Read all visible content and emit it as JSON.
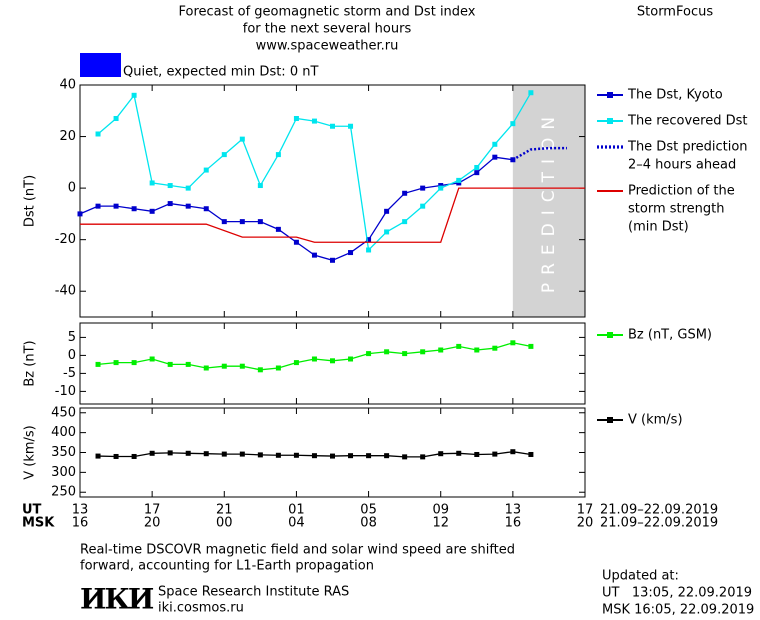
{
  "header": {
    "title_lines": [
      "Forecast of geomagnetic storm and Dst index",
      "for the next several hours",
      "www.spaceweather.ru"
    ],
    "brand": "StormFocus"
  },
  "status": {
    "label": "Quiet, expected min Dst: 0 nT",
    "color": "#0000ff"
  },
  "time_axis": {
    "xlim": [
      0,
      28
    ],
    "ut_label": "UT",
    "msk_label": "MSK",
    "date_range": "21.09–22.09.2019",
    "ut_ticks": [
      {
        "value": 0,
        "label": "13"
      },
      {
        "value": 4,
        "label": "17"
      },
      {
        "value": 8,
        "label": "21"
      },
      {
        "value": 12,
        "label": "01"
      },
      {
        "value": 16,
        "label": "05"
      },
      {
        "value": 20,
        "label": "09"
      },
      {
        "value": 24,
        "label": "13"
      },
      {
        "value": 28,
        "label": "17"
      }
    ],
    "msk_ticks": [
      {
        "value": 0,
        "label": "16"
      },
      {
        "value": 4,
        "label": "20"
      },
      {
        "value": 8,
        "label": "00"
      },
      {
        "value": 12,
        "label": "04"
      },
      {
        "value": 16,
        "label": "08"
      },
      {
        "value": 20,
        "label": "12"
      },
      {
        "value": 24,
        "label": "16"
      },
      {
        "value": 28,
        "label": "20"
      }
    ]
  },
  "chart_data": [
    {
      "type": "line",
      "y_label": "Dst (nT)",
      "ylim": [
        -50,
        40
      ],
      "yticks": [
        -40,
        -20,
        0,
        20,
        40
      ],
      "shaded_span": [
        24,
        28
      ],
      "shaded_label": "PREDICTION",
      "series": [
        {
          "name": "The Dst, Kyoto",
          "color": "#0000cc",
          "style": "solid",
          "marker": "square",
          "x": [
            0,
            1,
            2,
            3,
            4,
            5,
            6,
            7,
            8,
            9,
            10,
            11,
            12,
            13,
            14,
            15,
            16,
            17,
            18,
            19,
            20,
            21,
            22,
            23,
            24
          ],
          "values": [
            -10,
            -7,
            -7,
            -8,
            -9,
            -6,
            -7,
            -8,
            -13,
            -13,
            -13,
            -16,
            -21,
            -26,
            -28,
            -25,
            -20,
            -9,
            -2,
            0,
            1,
            2,
            6,
            12,
            11
          ]
        },
        {
          "name": "The recovered Dst",
          "color": "#00e5ee",
          "style": "solid",
          "marker": "square",
          "x": [
            1,
            2,
            3,
            4,
            5,
            6,
            7,
            8,
            9,
            10,
            11,
            12,
            13,
            14,
            15,
            16,
            17,
            18,
            19,
            20,
            21,
            22,
            23,
            24,
            25
          ],
          "values": [
            21,
            27,
            36,
            2,
            1,
            0,
            7,
            13,
            19,
            1,
            13,
            27,
            26,
            24,
            24,
            -24,
            -17,
            -13,
            -7,
            0,
            3,
            8,
            17,
            25,
            37
          ]
        },
        {
          "name": [
            "The Dst prediction",
            "2–4 hours ahead"
          ],
          "color": "#0000cc",
          "style": "dotted",
          "marker": "none",
          "x": [
            24,
            25,
            26,
            27
          ],
          "values": [
            11,
            15,
            15.5,
            15.5
          ]
        },
        {
          "name": [
            "Prediction of the",
            "storm strength",
            "(min Dst)"
          ],
          "color": "#dd0000",
          "style": "solid",
          "marker": "none",
          "x": [
            0,
            7,
            9,
            12,
            13,
            20,
            21,
            28
          ],
          "values": [
            -14,
            -14,
            -19,
            -19,
            -21,
            -21,
            0,
            0
          ]
        }
      ]
    },
    {
      "type": "line",
      "y_label": "Bz (nT)",
      "ylim": [
        -13.5,
        9
      ],
      "yticks": [
        -10,
        -5,
        0,
        5
      ],
      "series": [
        {
          "name": "Bz (nT, GSM)",
          "color": "#00ee00",
          "style": "solid",
          "marker": "square",
          "x": [
            1,
            2,
            3,
            4,
            5,
            6,
            7,
            8,
            9,
            10,
            11,
            12,
            13,
            14,
            15,
            16,
            17,
            18,
            19,
            20,
            21,
            22,
            23,
            24,
            25
          ],
          "values": [
            -2.5,
            -2,
            -2,
            -1,
            -2.5,
            -2.5,
            -3.5,
            -3,
            -3,
            -4,
            -3.5,
            -2,
            -1,
            -1.5,
            -1,
            0.5,
            1,
            0.5,
            1,
            1.5,
            2.5,
            1.5,
            2,
            3.5,
            2.5
          ]
        }
      ]
    },
    {
      "type": "line",
      "y_label": "V (km/s)",
      "ylim": [
        238,
        462
      ],
      "yticks": [
        250,
        300,
        350,
        400,
        450
      ],
      "series": [
        {
          "name": "V (km/s)",
          "color": "#000000",
          "style": "solid",
          "marker": "square",
          "x": [
            1,
            2,
            3,
            4,
            5,
            6,
            7,
            8,
            9,
            10,
            11,
            12,
            13,
            14,
            15,
            16,
            17,
            18,
            19,
            20,
            21,
            22,
            23,
            24,
            25
          ],
          "values": [
            341,
            340,
            340,
            348,
            349,
            348,
            347,
            346,
            346,
            344,
            343,
            343,
            342,
            341,
            342,
            342,
            342,
            339,
            339,
            347,
            348,
            345,
            346,
            352,
            345
          ]
        }
      ]
    }
  ],
  "footer": {
    "note_lines": [
      "Real-time DSCOVR magnetic field and solar wind speed are shifted",
      "forward, accounting for L1-Earth propagation"
    ],
    "logo": "ИКИ",
    "institute": "Space Research Institute RAS",
    "site": "iki.cosmos.ru",
    "updated_label": "Updated at:",
    "updated_ut": "UT   13:05, 22.09.2019",
    "updated_msk": "MSK 16:05, 22.09.2019"
  }
}
